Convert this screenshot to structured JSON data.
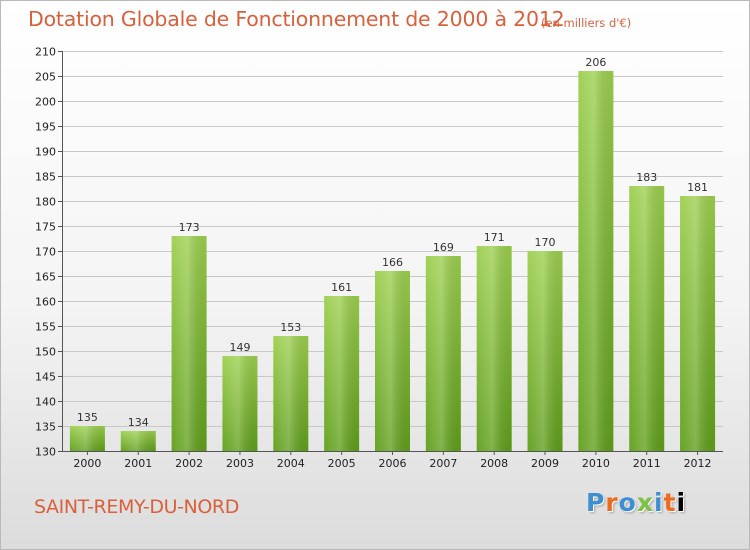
{
  "title": "Dotation Globale de Fonctionnement de 2000 à 2012",
  "unit_note": "(en milliers d'€)",
  "commune": "SAINT-REMY-DU-NORD",
  "logo": {
    "letters": [
      "P",
      "r",
      "o",
      "x",
      "i",
      "t",
      "i"
    ]
  },
  "colors": {
    "title": "#d9603b",
    "bar_light": "#9ccf4e",
    "bar_dark": "#5f9e1a",
    "grid": "#c8c8c8"
  },
  "chart_data": {
    "type": "bar",
    "categories": [
      "2000",
      "2001",
      "2002",
      "2003",
      "2004",
      "2005",
      "2006",
      "2007",
      "2008",
      "2009",
      "2010",
      "2011",
      "2012"
    ],
    "values": [
      135,
      134,
      173,
      149,
      153,
      161,
      166,
      169,
      171,
      170,
      206,
      183,
      181
    ],
    "ylim": [
      130,
      210
    ],
    "yticks": [
      130,
      135,
      140,
      145,
      150,
      155,
      160,
      165,
      170,
      175,
      180,
      185,
      190,
      195,
      200,
      205,
      210
    ],
    "grid": true,
    "legend": false
  }
}
